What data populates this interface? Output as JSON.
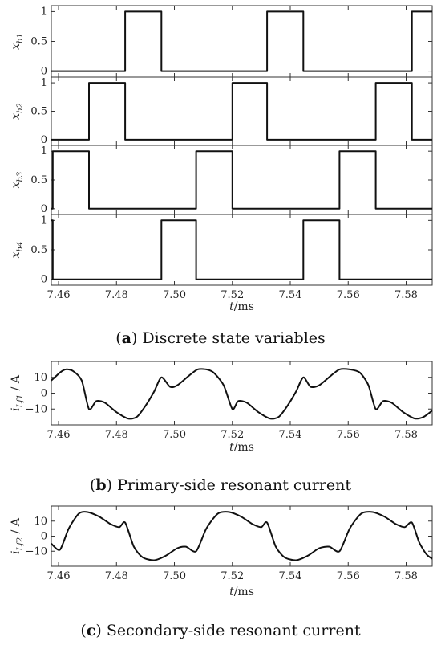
{
  "chart_data": [
    {
      "type": "line",
      "step": true,
      "ylabel": "x",
      "ylabel_sub": "b1",
      "yticks": [
        "1",
        "0.5",
        "0"
      ],
      "ylim": [
        -0.1,
        1.1
      ],
      "xlim": [
        7.4575,
        7.589
      ],
      "x": [
        7.4575,
        7.483,
        7.483,
        7.4955,
        7.4955,
        7.532,
        7.532,
        7.5445,
        7.5445,
        7.582,
        7.582,
        7.589
      ],
      "y": [
        0,
        0,
        1,
        1,
        0,
        0,
        1,
        1,
        0,
        0,
        1,
        1
      ]
    },
    {
      "type": "line",
      "step": true,
      "ylabel": "x",
      "ylabel_sub": "b2",
      "yticks": [
        "1",
        "0.5",
        "0"
      ],
      "ylim": [
        -0.1,
        1.1
      ],
      "xlim": [
        7.4575,
        7.589
      ],
      "x": [
        7.4575,
        7.4705,
        7.4705,
        7.483,
        7.483,
        7.52,
        7.52,
        7.532,
        7.532,
        7.5695,
        7.5695,
        7.582,
        7.582,
        7.589
      ],
      "y": [
        0,
        0,
        1,
        1,
        0,
        0,
        1,
        1,
        0,
        0,
        1,
        1,
        0,
        0
      ]
    },
    {
      "type": "line",
      "step": true,
      "ylabel": "x",
      "ylabel_sub": "b3",
      "yticks": [
        "1",
        "0.5",
        "0"
      ],
      "ylim": [
        -0.1,
        1.1
      ],
      "xlim": [
        7.4575,
        7.589
      ],
      "x": [
        7.4575,
        7.458,
        7.458,
        7.4705,
        7.4705,
        7.5075,
        7.5075,
        7.52,
        7.52,
        7.557,
        7.557,
        7.5695,
        7.5695,
        7.589
      ],
      "y": [
        0,
        0,
        1,
        1,
        0,
        0,
        1,
        1,
        0,
        0,
        1,
        1,
        0,
        0
      ]
    },
    {
      "type": "line",
      "step": true,
      "ylabel": "x",
      "ylabel_sub": "b4",
      "yticks": [
        "1",
        "0.5",
        "0"
      ],
      "ylim": [
        -0.1,
        1.1
      ],
      "xlim": [
        7.4575,
        7.589
      ],
      "x": [
        7.4575,
        7.458,
        7.458,
        7.4955,
        7.4955,
        7.5075,
        7.5075,
        7.5445,
        7.5445,
        7.557,
        7.557,
        7.589
      ],
      "y": [
        1,
        1,
        0,
        0,
        1,
        1,
        0,
        0,
        1,
        1,
        0,
        0
      ],
      "xticks": [
        "7.46",
        "7.48",
        "7.50",
        "7.52",
        "7.54",
        "7.56",
        "7.58"
      ],
      "xlabel": "t",
      "xlabel_unit": "/ms"
    },
    {
      "type": "line",
      "ylabel": "i",
      "ylabel_sub": "Lf1",
      "ylabel_unit": " / A",
      "yticks": [
        "10",
        "0",
        "−10"
      ],
      "ylim": [
        -20,
        20
      ],
      "xlim": [
        7.4575,
        7.589
      ],
      "xticks": [
        "7.46",
        "7.48",
        "7.50",
        "7.52",
        "7.54",
        "7.56",
        "7.58"
      ],
      "xlabel": "t",
      "xlabel_unit": "/ms",
      "x": [
        7.4575,
        7.4605,
        7.4625,
        7.465,
        7.468,
        7.4705,
        7.473,
        7.476,
        7.48,
        7.484,
        7.487,
        7.49,
        7.493,
        7.4955,
        7.4985,
        7.501,
        7.505,
        7.508,
        7.511,
        7.5135,
        7.517,
        7.52,
        7.522,
        7.525,
        7.529,
        7.533,
        7.536,
        7.539,
        7.542,
        7.5445,
        7.547,
        7.55,
        7.554,
        7.557,
        7.5605,
        7.564,
        7.567,
        7.5695,
        7.572,
        7.575,
        7.579,
        7.583,
        7.586,
        7.589
      ],
      "y": [
        8,
        13,
        15,
        14,
        8,
        -10,
        -5,
        -6,
        -12,
        -16,
        -15,
        -8,
        1,
        10,
        4,
        5,
        11,
        15,
        15,
        13,
        5,
        -10,
        -5,
        -6,
        -12,
        -16,
        -15,
        -8,
        1,
        10,
        4,
        5,
        11,
        15,
        15,
        13,
        5,
        -10,
        -5,
        -6,
        -12,
        -16,
        -15,
        -11
      ]
    },
    {
      "type": "line",
      "ylabel": "i",
      "ylabel_sub": "Lf2",
      "ylabel_unit": " / A",
      "yticks": [
        "10",
        "0",
        "−10"
      ],
      "ylim": [
        -20,
        20
      ],
      "xlim": [
        7.4575,
        7.589
      ],
      "xticks": [
        "7.46",
        "7.48",
        "7.50",
        "7.52",
        "7.54",
        "7.56",
        "7.58"
      ],
      "xlabel": "t",
      "xlabel_unit": "/ms",
      "x": [
        7.4575,
        7.4605,
        7.4635,
        7.467,
        7.47,
        7.474,
        7.478,
        7.481,
        7.483,
        7.486,
        7.489,
        7.493,
        7.497,
        7.501,
        7.504,
        7.5075,
        7.511,
        7.515,
        7.519,
        7.523,
        7.527,
        7.53,
        7.532,
        7.535,
        7.538,
        7.542,
        7.546,
        7.55,
        7.5535,
        7.557,
        7.5605,
        7.5645,
        7.5685,
        7.5725,
        7.5765,
        7.5795,
        7.582,
        7.5845,
        7.587,
        7.589
      ],
      "y": [
        -5,
        -9,
        5,
        15,
        16,
        13,
        8,
        6,
        9,
        -7,
        -14,
        -16,
        -13,
        -8,
        -7,
        -10,
        5,
        15,
        16,
        13,
        8,
        6,
        9,
        -7,
        -14,
        -16,
        -13,
        -8,
        -7,
        -10,
        5,
        15,
        16,
        13,
        8,
        6,
        9,
        -4,
        -12,
        -15
      ]
    }
  ],
  "captions": [
    {
      "bold": "a",
      "text": " Discrete state variables"
    },
    {
      "bold": "b",
      "text": " Primary-side resonant current"
    },
    {
      "bold": "c",
      "text": " Secondary-side resonant current"
    }
  ],
  "colors": {
    "line": "#111111",
    "axis": "#333333"
  }
}
